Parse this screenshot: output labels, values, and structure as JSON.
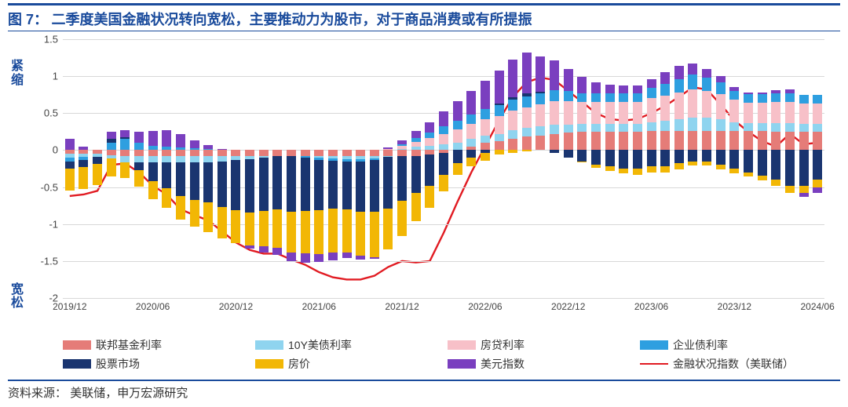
{
  "figure_label": "图 7：",
  "title": "二季度美国金融状况转向宽松，主要推动力为股市，对于商品消费或有所提振",
  "ylabel_top": "紧缩",
  "ylabel_bot": "宽松",
  "source_label": "资料来源：",
  "source_text": "美联储，申万宏源研究",
  "chart": {
    "type": "stacked-bar-with-line",
    "ylim": [
      -2,
      1.5
    ],
    "yticks": [
      -2,
      -1.5,
      -1,
      -0.5,
      0,
      0.5,
      1,
      1.5
    ],
    "colors": {
      "fed_funds": "#e57c78",
      "ust10y": "#8fd4ef",
      "mortgage": "#f7c0c8",
      "corp_bond": "#2e9fe0",
      "equity": "#1a3570",
      "housing": "#f2b705",
      "dollar": "#7a3fbf",
      "line": "#e11b22",
      "grid": "#d8d8d8",
      "title": "#1a4b9c"
    },
    "legend": [
      {
        "key": "fed_funds",
        "label": "联邦基金利率",
        "type": "box"
      },
      {
        "key": "ust10y",
        "label": "10Y美债利率",
        "type": "box"
      },
      {
        "key": "mortgage",
        "label": "房贷利率",
        "type": "box"
      },
      {
        "key": "corp_bond",
        "label": "企业债利率",
        "type": "box"
      },
      {
        "key": "equity",
        "label": "股票市场",
        "type": "box"
      },
      {
        "key": "housing",
        "label": "房价",
        "type": "box"
      },
      {
        "key": "dollar",
        "label": "美元指数",
        "type": "box"
      },
      {
        "key": "line",
        "label": "金融状况指数（美联储）",
        "type": "line"
      }
    ],
    "x_major_labels": [
      "2019/12",
      "2020/06",
      "2020/12",
      "2021/06",
      "2021/12",
      "2022/06",
      "2022/12",
      "2023/06",
      "2023/12",
      "2024/06"
    ],
    "x_major_pos_idx": [
      0,
      6,
      12,
      18,
      24,
      30,
      36,
      42,
      48,
      54
    ],
    "n_periods": 55,
    "series": {
      "fed_funds": [
        -0.05,
        -0.05,
        -0.05,
        -0.07,
        -0.08,
        -0.08,
        -0.08,
        -0.08,
        -0.08,
        -0.08,
        -0.08,
        -0.08,
        -0.08,
        -0.08,
        -0.08,
        -0.08,
        -0.08,
        -0.08,
        -0.08,
        -0.08,
        -0.08,
        -0.08,
        -0.08,
        -0.08,
        -0.08,
        -0.08,
        -0.06,
        -0.04,
        0.0,
        0.05,
        0.1,
        0.12,
        0.15,
        0.18,
        0.2,
        0.22,
        0.24,
        0.25,
        0.25,
        0.25,
        0.25,
        0.25,
        0.26,
        0.26,
        0.26,
        0.26,
        0.26,
        0.26,
        0.26,
        0.26,
        0.26,
        0.25,
        0.25,
        0.25,
        0.25
      ],
      "ust10y": [
        -0.05,
        -0.04,
        -0.04,
        -0.04,
        -0.08,
        -0.09,
        -0.09,
        -0.09,
        -0.09,
        -0.09,
        -0.08,
        -0.07,
        -0.05,
        -0.04,
        -0.02,
        0.0,
        0.0,
        0.0,
        -0.02,
        -0.03,
        -0.04,
        -0.04,
        -0.03,
        -0.01,
        0.02,
        0.05,
        0.06,
        0.08,
        0.1,
        0.1,
        0.1,
        0.1,
        0.12,
        0.12,
        0.12,
        0.12,
        0.1,
        0.1,
        0.1,
        0.1,
        0.1,
        0.1,
        0.12,
        0.14,
        0.16,
        0.18,
        0.18,
        0.16,
        0.12,
        0.1,
        0.1,
        0.12,
        0.12,
        0.1,
        0.1
      ],
      "mortgage": [
        0.0,
        0.0,
        0.0,
        0.0,
        0.0,
        0.0,
        0.0,
        0.0,
        0.0,
        0.0,
        0.0,
        0.0,
        0.0,
        0.0,
        0.0,
        0.0,
        0.0,
        0.0,
        0.0,
        0.0,
        0.0,
        0.0,
        0.0,
        0.02,
        0.04,
        0.06,
        0.1,
        0.14,
        0.18,
        0.2,
        0.22,
        0.24,
        0.26,
        0.28,
        0.3,
        0.32,
        0.32,
        0.3,
        0.3,
        0.3,
        0.3,
        0.3,
        0.32,
        0.34,
        0.36,
        0.38,
        0.36,
        0.34,
        0.3,
        0.28,
        0.28,
        0.28,
        0.28,
        0.28,
        0.28
      ],
      "corp_bond": [
        -0.05,
        -0.04,
        0.0,
        0.1,
        0.15,
        0.1,
        0.06,
        0.05,
        0.04,
        0.03,
        0.02,
        0.0,
        0.0,
        0.0,
        0.0,
        0.0,
        0.0,
        -0.02,
        -0.03,
        -0.03,
        -0.03,
        -0.03,
        -0.02,
        0.0,
        0.02,
        0.05,
        0.08,
        0.1,
        0.12,
        0.13,
        0.14,
        0.15,
        0.15,
        0.15,
        0.15,
        0.15,
        0.14,
        0.12,
        0.12,
        0.12,
        0.12,
        0.12,
        0.14,
        0.16,
        0.18,
        0.2,
        0.18,
        0.16,
        0.12,
        0.12,
        0.12,
        0.12,
        0.12,
        0.12,
        0.12
      ],
      "equity": [
        -0.1,
        -0.1,
        -0.1,
        0.05,
        0.02,
        -0.1,
        -0.25,
        -0.35,
        -0.45,
        -0.5,
        -0.55,
        -0.62,
        -0.68,
        -0.72,
        -0.72,
        -0.72,
        -0.75,
        -0.72,
        -0.68,
        -0.65,
        -0.65,
        -0.68,
        -0.7,
        -0.7,
        -0.6,
        -0.5,
        -0.42,
        -0.3,
        -0.18,
        -0.1,
        -0.04,
        0.02,
        0.04,
        0.04,
        0.02,
        -0.04,
        -0.1,
        -0.15,
        -0.2,
        -0.22,
        -0.25,
        -0.25,
        -0.22,
        -0.22,
        -0.18,
        -0.15,
        -0.15,
        -0.2,
        -0.25,
        -0.3,
        -0.35,
        -0.4,
        -0.48,
        -0.48,
        -0.4
      ],
      "housing": [
        -0.3,
        -0.3,
        -0.28,
        -0.25,
        -0.22,
        -0.22,
        -0.24,
        -0.26,
        -0.32,
        -0.36,
        -0.4,
        -0.42,
        -0.45,
        -0.45,
        -0.48,
        -0.52,
        -0.55,
        -0.58,
        -0.6,
        -0.6,
        -0.58,
        -0.6,
        -0.62,
        -0.55,
        -0.48,
        -0.38,
        -0.3,
        -0.22,
        -0.15,
        -0.12,
        -0.1,
        -0.06,
        -0.04,
        -0.02,
        0.0,
        0.0,
        0.0,
        -0.02,
        -0.04,
        -0.06,
        -0.06,
        -0.08,
        -0.08,
        -0.08,
        -0.08,
        -0.06,
        -0.06,
        -0.06,
        -0.06,
        -0.06,
        -0.06,
        -0.08,
        -0.1,
        -0.1,
        -0.1
      ],
      "dollar": [
        0.15,
        0.05,
        0.0,
        0.1,
        0.1,
        0.15,
        0.2,
        0.22,
        0.18,
        0.1,
        0.05,
        0.02,
        0.0,
        -0.04,
        -0.08,
        -0.1,
        -0.12,
        -0.12,
        -0.1,
        -0.1,
        -0.08,
        -0.05,
        -0.02,
        0.02,
        0.05,
        0.1,
        0.14,
        0.2,
        0.26,
        0.32,
        0.38,
        0.45,
        0.5,
        0.55,
        0.48,
        0.4,
        0.3,
        0.22,
        0.15,
        0.12,
        0.1,
        0.1,
        0.12,
        0.15,
        0.18,
        0.15,
        0.12,
        0.08,
        0.05,
        0.02,
        0.02,
        0.04,
        0.05,
        -0.05,
        -0.08
      ]
    },
    "line_values": [
      -0.62,
      -0.6,
      -0.55,
      -0.2,
      -0.18,
      -0.3,
      -0.48,
      -0.6,
      -0.8,
      -0.88,
      -0.95,
      -1.1,
      -1.25,
      -1.35,
      -1.4,
      -1.4,
      -1.48,
      -1.55,
      -1.65,
      -1.72,
      -1.75,
      -1.75,
      -1.7,
      -1.58,
      -1.5,
      -1.52,
      -1.5,
      -1.12,
      -0.7,
      -0.3,
      0.05,
      0.4,
      0.72,
      0.92,
      0.98,
      0.95,
      0.8,
      0.65,
      0.5,
      0.42,
      0.4,
      0.42,
      0.5,
      0.6,
      0.72,
      0.85,
      0.82,
      0.62,
      0.4,
      0.25,
      0.12,
      0.05,
      0.22,
      0.08,
      0.1
    ]
  }
}
